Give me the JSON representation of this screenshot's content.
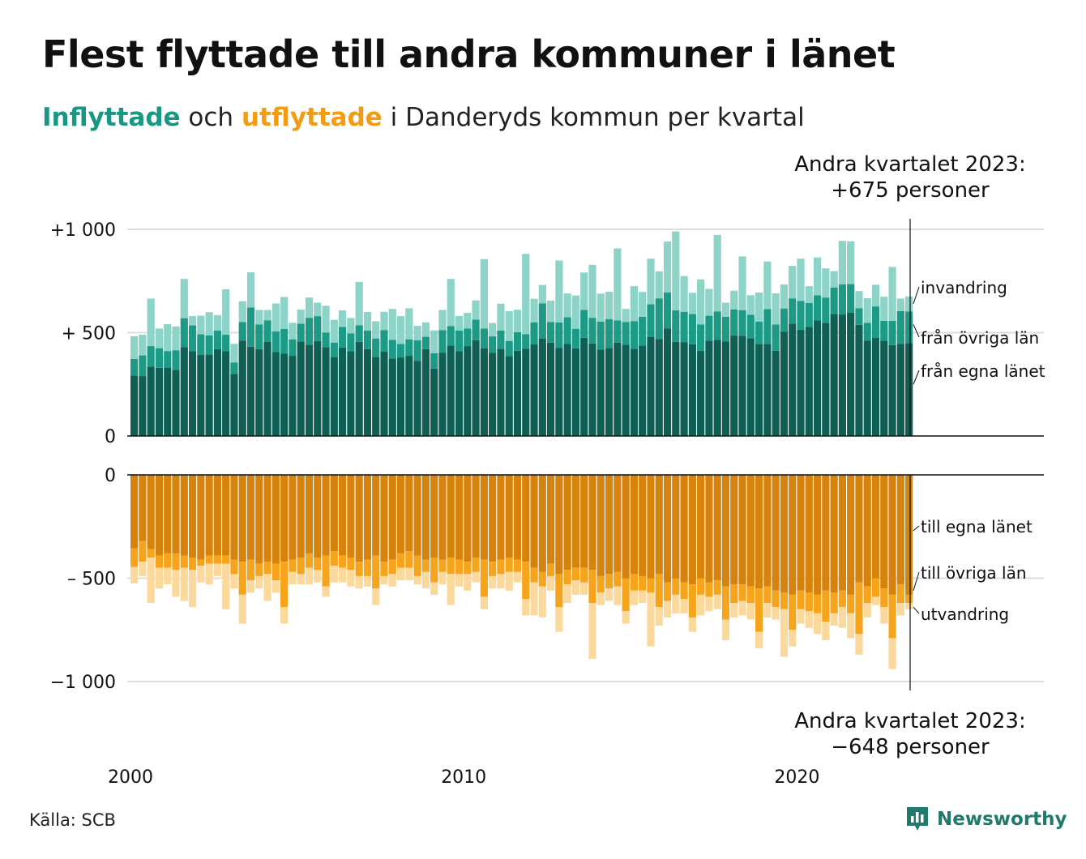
{
  "title": "Flest flyttade till andra kommuner i länet",
  "subtitle": {
    "in_word": "Inflyttade",
    "and_word": "och",
    "out_word": "utflyttade",
    "rest": "i Danderyds kommun per kvartal"
  },
  "note_in": {
    "line1": "Andra kvartalet 2023:",
    "line2": "+675 personer"
  },
  "note_out": {
    "line1": "Andra kvartalet 2023:",
    "line2": "−648 personer"
  },
  "source": "Källa: SCB",
  "brand": "Newsworthy",
  "colors": {
    "in_egna": "#0f5f55",
    "in_ovriga": "#1c9a86",
    "in_invandring": "#8dd3c7",
    "out_egna": "#d6830d",
    "out_ovriga": "#f7a41d",
    "out_utvandring": "#fbd99c",
    "grid": "#dddddd",
    "axis": "#111111"
  },
  "chart_data": {
    "type": "bar",
    "stacked": true,
    "start_year": 2000,
    "start_quarter": 1,
    "quarters": 94,
    "x_tick_labels": [
      "2000",
      "2010",
      "2020"
    ],
    "upper": {
      "ylim": [
        0,
        1050
      ],
      "y_ticks": [
        {
          "v": 0,
          "label": "0"
        },
        {
          "v": 500,
          "label": "+  500"
        },
        {
          "v": 1000,
          "label": "+1 000"
        }
      ],
      "series": [
        {
          "name": "från egna länet",
          "values": [
            293,
            290,
            335,
            330,
            331,
            320,
            430,
            410,
            392,
            395,
            420,
            410,
            301,
            462,
            432,
            420,
            455,
            406,
            398,
            388,
            458,
            442,
            460,
            430,
            382,
            428,
            411,
            456,
            420,
            382,
            408,
            375,
            380,
            388,
            363,
            420,
            326,
            402,
            437,
            410,
            435,
            463,
            425,
            402,
            422,
            386,
            412,
            423,
            443,
            472,
            452,
            427,
            445,
            424,
            475,
            448,
            418,
            426,
            452,
            442,
            422,
            437,
            480,
            470,
            521,
            456,
            453,
            444,
            412,
            462,
            465,
            457,
            486,
            485,
            473,
            446,
            446,
            412,
            504,
            544,
            514,
            528,
            559,
            548,
            591,
            588,
            596,
            538,
            462,
            476,
            462,
            440,
            445,
            450
          ]
        },
        {
          "name": "från övriga län",
          "values": [
            80,
            100,
            100,
            95,
            80,
            95,
            140,
            125,
            100,
            92,
            90,
            80,
            55,
            90,
            190,
            120,
            105,
            100,
            120,
            80,
            85,
            130,
            120,
            70,
            70,
            100,
            85,
            80,
            90,
            90,
            105,
            90,
            65,
            80,
            100,
            60,
            75,
            110,
            95,
            100,
            85,
            100,
            95,
            80,
            88,
            74,
            90,
            70,
            107,
            170,
            100,
            122,
            130,
            95,
            135,
            124,
            135,
            140,
            107,
            110,
            134,
            140,
            158,
            196,
            174,
            152,
            148,
            146,
            128,
            120,
            138,
            120,
            127,
            124,
            114,
            108,
            168,
            128,
            113,
            122,
            140,
            116,
            122,
            122,
            128,
            146,
            139,
            80,
            85,
            151,
            95,
            118,
            160,
            153
          ]
        },
        {
          "name": "invandring",
          "values": [
            110,
            100,
            230,
            95,
            130,
            115,
            190,
            45,
            90,
            112,
            75,
            220,
            90,
            100,
            170,
            70,
            50,
            135,
            155,
            80,
            69,
            98,
            65,
            130,
            110,
            80,
            75,
            210,
            90,
            83,
            88,
            150,
            135,
            150,
            70,
            70,
            110,
            98,
            228,
            71,
            76,
            93,
            336,
            65,
            130,
            144,
            109,
            388,
            114,
            89,
            103,
            300,
            115,
            161,
            181,
            256,
            136,
            132,
            349,
            63,
            169,
            120,
            220,
            131,
            246,
            382,
            173,
            103,
            218,
            130,
            370,
            68,
            90,
            260,
            94,
            140,
            230,
            150,
            116,
            157,
            204,
            81,
            183,
            141,
            79,
            210,
            207,
            83,
            120,
            105,
            117,
            260,
            60,
            72
          ]
        }
      ]
    },
    "lower": {
      "ylim": [
        -1050,
        0
      ],
      "y_ticks": [
        {
          "v": 0,
          "label": "0"
        },
        {
          "v": -500,
          "label": "–  500"
        },
        {
          "v": -1000,
          "label": "−1 000"
        }
      ],
      "series": [
        {
          "name": "till egna länet",
          "values": [
            -355,
            -320,
            -360,
            -390,
            -380,
            -380,
            -390,
            -400,
            -410,
            -390,
            -390,
            -390,
            -410,
            -420,
            -410,
            -430,
            -420,
            -430,
            -420,
            -410,
            -400,
            -380,
            -400,
            -390,
            -370,
            -390,
            -400,
            -420,
            -410,
            -390,
            -420,
            -410,
            -380,
            -370,
            -390,
            -410,
            -400,
            -410,
            -400,
            -410,
            -420,
            -400,
            -410,
            -420,
            -410,
            -400,
            -410,
            -420,
            -450,
            -470,
            -430,
            -480,
            -460,
            -450,
            -450,
            -460,
            -490,
            -480,
            -470,
            -500,
            -480,
            -490,
            -500,
            -480,
            -520,
            -500,
            -520,
            -530,
            -500,
            -520,
            -510,
            -540,
            -530,
            -530,
            -540,
            -550,
            -540,
            -560,
            -570,
            -580,
            -560,
            -570,
            -580,
            -560,
            -570,
            -560,
            -580,
            -520,
            -540,
            -500,
            -550,
            -580,
            -530,
            -580
          ]
        },
        {
          "name": "till övriga län",
          "values": [
            -90,
            -100,
            -40,
            -60,
            -70,
            -80,
            -60,
            -60,
            -30,
            -40,
            -40,
            -40,
            -70,
            -160,
            -100,
            -60,
            -60,
            -80,
            -220,
            -60,
            -80,
            -70,
            -60,
            -150,
            -70,
            -60,
            -60,
            -70,
            -80,
            -160,
            -70,
            -70,
            -70,
            -80,
            -100,
            -60,
            -120,
            -60,
            -80,
            -70,
            -60,
            -70,
            -180,
            -70,
            -70,
            -70,
            -60,
            -180,
            -70,
            -70,
            -60,
            -160,
            -70,
            -60,
            -70,
            -160,
            -80,
            -70,
            -70,
            -160,
            -80,
            -70,
            -70,
            -160,
            -90,
            -80,
            -80,
            -160,
            -80,
            -70,
            -70,
            -160,
            -90,
            -80,
            -80,
            -210,
            -80,
            -80,
            -80,
            -170,
            -90,
            -90,
            -90,
            -150,
            -100,
            -80,
            -90,
            -250,
            -80,
            -90,
            -90,
            -210,
            -90,
            -40
          ]
        },
        {
          "name": "utvandring",
          "values": [
            -80,
            -70,
            -220,
            -100,
            -80,
            -130,
            -160,
            -180,
            -80,
            -100,
            -60,
            -220,
            -70,
            -140,
            -60,
            -60,
            -130,
            -60,
            -80,
            -60,
            -50,
            -80,
            -60,
            -50,
            -80,
            -70,
            -80,
            -60,
            -50,
            -80,
            -40,
            -60,
            -60,
            -60,
            -40,
            -80,
            -60,
            -60,
            -150,
            -60,
            -80,
            -50,
            -60,
            -60,
            -70,
            -90,
            -50,
            -80,
            -160,
            -150,
            -70,
            -120,
            -90,
            -70,
            -60,
            -270,
            -60,
            -60,
            -90,
            -60,
            -70,
            -60,
            -260,
            -90,
            -80,
            -90,
            -70,
            -70,
            -100,
            -70,
            -70,
            -100,
            -70,
            -70,
            -80,
            -80,
            -70,
            -60,
            -230,
            -80,
            -70,
            -80,
            -100,
            -90,
            -60,
            -100,
            -120,
            -100,
            -70,
            -40,
            -80,
            -150,
            -60,
            -30
          ]
        }
      ]
    }
  }
}
